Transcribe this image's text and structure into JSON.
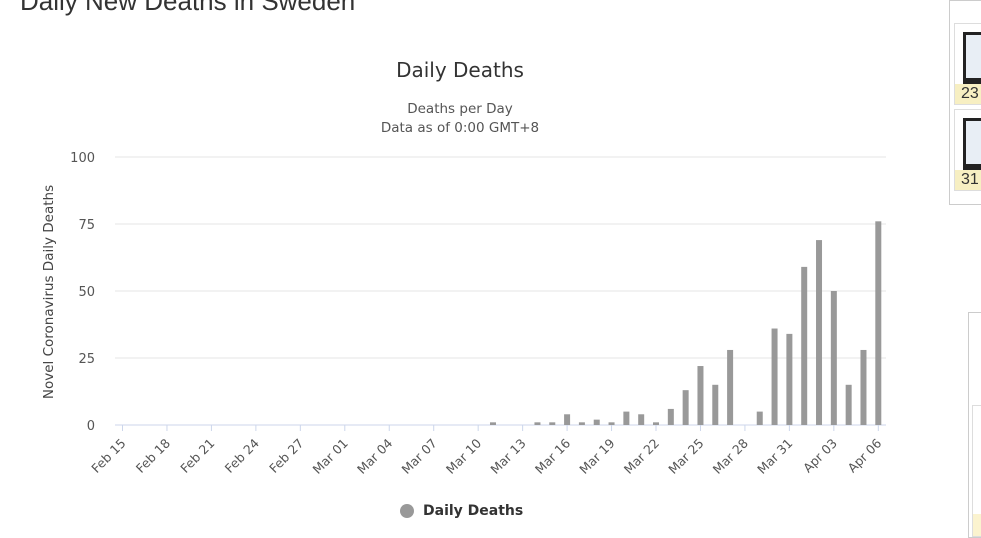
{
  "page": {
    "title": "Daily New Deaths in Sweden"
  },
  "sidebar": {
    "thumbnails": [
      {
        "label": "23"
      },
      {
        "label": "31"
      }
    ]
  },
  "chart_data": {
    "type": "bar",
    "title": "Daily Deaths",
    "subtitle": [
      "Deaths per Day",
      "Data as of 0:00 GMT+8"
    ],
    "ylabel": "Novel Coronavirus Daily Deaths",
    "xlabel": "",
    "ylim": [
      0,
      100
    ],
    "yticks": [
      0,
      25,
      50,
      75,
      100
    ],
    "grid": true,
    "legend": {
      "position": "bottom",
      "entries": [
        "Daily Deaths"
      ]
    },
    "color": "#999999",
    "categories": [
      "Feb 15",
      "Feb 16",
      "Feb 17",
      "Feb 18",
      "Feb 19",
      "Feb 20",
      "Feb 21",
      "Feb 22",
      "Feb 23",
      "Feb 24",
      "Feb 25",
      "Feb 26",
      "Feb 27",
      "Feb 28",
      "Feb 29",
      "Mar 01",
      "Mar 02",
      "Mar 03",
      "Mar 04",
      "Mar 05",
      "Mar 06",
      "Mar 07",
      "Mar 08",
      "Mar 09",
      "Mar 10",
      "Mar 11",
      "Mar 12",
      "Mar 13",
      "Mar 14",
      "Mar 15",
      "Mar 16",
      "Mar 17",
      "Mar 18",
      "Mar 19",
      "Mar 20",
      "Mar 21",
      "Mar 22",
      "Mar 23",
      "Mar 24",
      "Mar 25",
      "Mar 26",
      "Mar 27",
      "Mar 28",
      "Mar 29",
      "Mar 30",
      "Mar 31",
      "Apr 01",
      "Apr 02",
      "Apr 03",
      "Apr 04",
      "Apr 05",
      "Apr 06"
    ],
    "xtick_labels": [
      "Feb 15",
      "Feb 18",
      "Feb 21",
      "Feb 24",
      "Feb 27",
      "Mar 01",
      "Mar 04",
      "Mar 07",
      "Mar 10",
      "Mar 13",
      "Mar 16",
      "Mar 19",
      "Mar 22",
      "Mar 25",
      "Mar 28",
      "Mar 31",
      "Apr 03",
      "Apr 06"
    ],
    "series": [
      {
        "name": "Daily Deaths",
        "values": [
          0,
          0,
          0,
          0,
          0,
          0,
          0,
          0,
          0,
          0,
          0,
          0,
          0,
          0,
          0,
          0,
          0,
          0,
          0,
          0,
          0,
          0,
          0,
          0,
          0,
          1,
          0,
          0,
          1,
          1,
          4,
          1,
          2,
          1,
          5,
          4,
          1,
          6,
          13,
          22,
          15,
          28,
          0,
          5,
          36,
          34,
          59,
          69,
          50,
          15,
          28,
          76
        ]
      }
    ]
  }
}
